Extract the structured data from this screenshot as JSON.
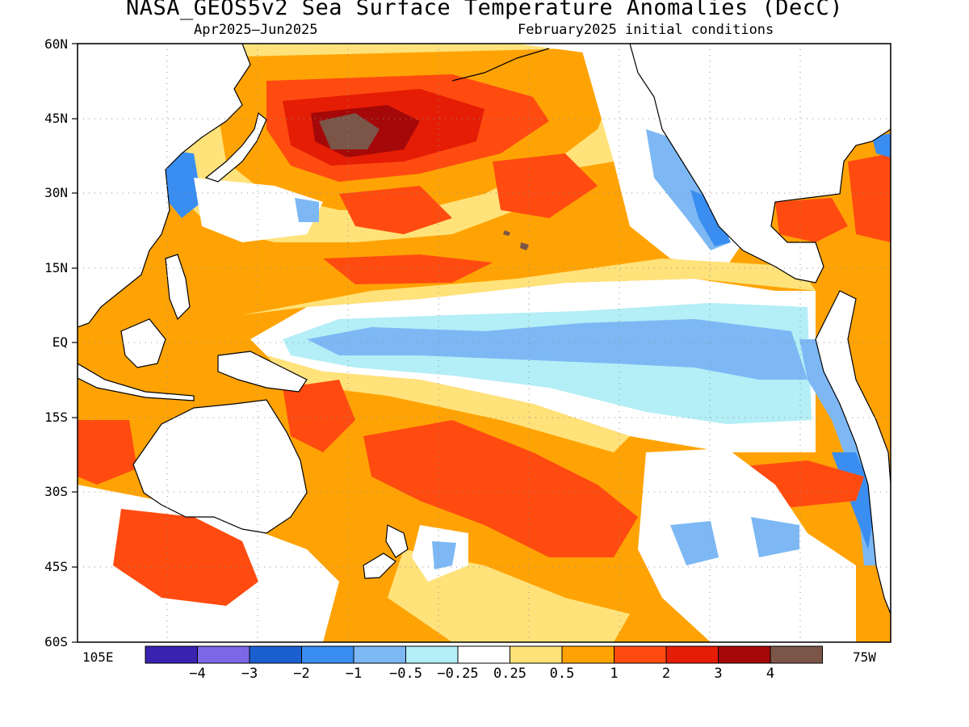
{
  "title": "NASA_GEOS5v2 Sea Surface Temperature Anomalies (DecC)",
  "subtitle_left": "Apr2025–Jun2025",
  "subtitle_right": "February2025 initial conditions",
  "lat_labels": [
    "60N",
    "45N",
    "30N",
    "15N",
    "EQ",
    "15S",
    "30S",
    "45S",
    "60S"
  ],
  "lon_labels": {
    "west": "105E",
    "east": "75W"
  },
  "colorbar": {
    "colors": [
      "#3a22b0",
      "#7c68e6",
      "#1a5fd0",
      "#3a8ef2",
      "#7db8f5",
      "#b4eef6",
      "#ffffff",
      "#ffe27a",
      "#ffa305",
      "#ff4b10",
      "#e51d05",
      "#a50808",
      "#7a5548"
    ],
    "labels": [
      "−4",
      "−3",
      "−2",
      "−1",
      "−0.5",
      "−0.25",
      "0.25",
      "0.5",
      "1",
      "2",
      "3",
      "4"
    ]
  },
  "colors": {
    "land": "#ffffff",
    "coast": "#000000",
    "grid": "#8c8c8c"
  }
}
